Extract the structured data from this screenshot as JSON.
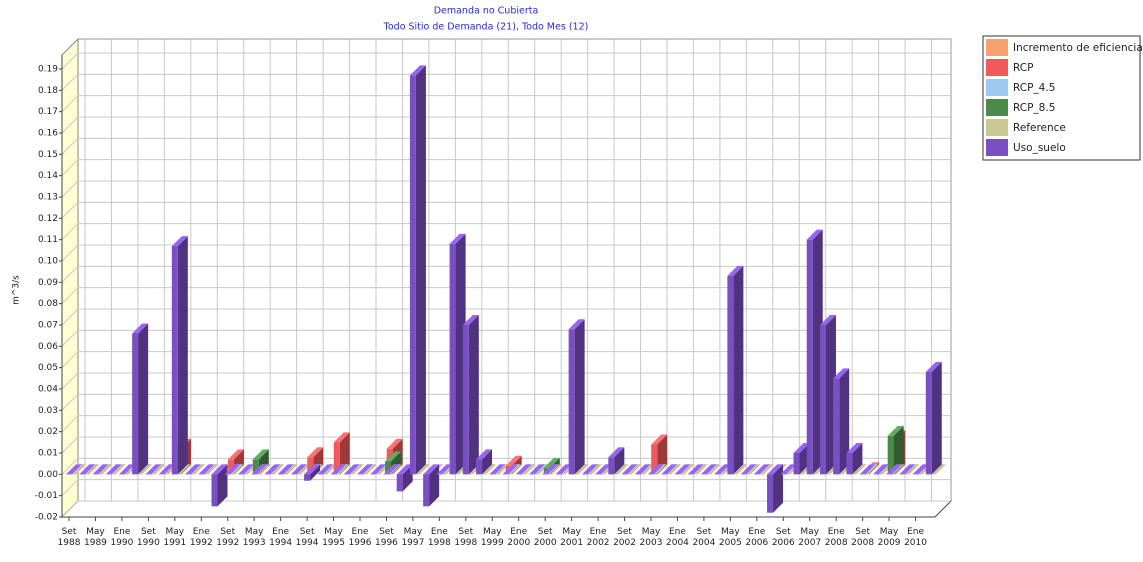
{
  "chart_data": {
    "type": "bar3d",
    "title": "Demanda no Cubierta",
    "subtitle": "Todo Sitio de Demanda (21), Todo Mes (12)",
    "y_label": "m^3/s",
    "grid": true,
    "legend": "right",
    "ylim": [
      -0.02,
      0.19
    ],
    "yticks": [
      -0.02,
      -0.01,
      {
        "value": 0,
        "label": "0.00"
      },
      0.01,
      0.02,
      0.03,
      0.04,
      0.05,
      0.06,
      0.07,
      0.08,
      0.09,
      {
        "value": 0.1,
        "label": "0.10"
      },
      0.11,
      0.12,
      0.13,
      0.14,
      0.15,
      0.16,
      0.17,
      0.18,
      0.19
    ],
    "categories": [
      "Set 1988",
      null,
      "May 1989",
      null,
      "Ene 1990",
      null,
      "Set 1990",
      null,
      "May 1991",
      null,
      "Ene 1992",
      null,
      "Set 1992",
      null,
      "May 1993",
      null,
      "Ene 1994",
      null,
      "Set 1994",
      null,
      "May 1995",
      null,
      "Ene 1996",
      null,
      "Set 1996",
      null,
      "May 1997",
      null,
      "Ene 1998",
      null,
      "Set 1998",
      null,
      "May 1999",
      null,
      "Ene 2000",
      null,
      "Set 2000",
      null,
      "May 2001",
      null,
      "Ene 2002",
      null,
      "Set 2002",
      null,
      "May 2003",
      null,
      "Ene 2004",
      null,
      "Set 2004",
      null,
      "May 2005",
      null,
      "Ene 2006",
      null,
      "Set 2006",
      null,
      "May 2007",
      null,
      "Ene 2008",
      null,
      "Set 2008",
      null,
      "May 2009",
      null,
      "Ene 2010",
      null
    ],
    "series": [
      {
        "name": "Incremento de eficiencia",
        "color": "#f7a26e",
        "values": [
          0,
          0,
          0,
          0,
          0,
          0,
          0,
          0,
          0,
          0,
          0,
          0,
          0,
          0,
          0,
          0,
          0,
          0,
          0,
          0,
          0,
          0,
          0,
          0,
          0,
          0,
          0,
          0,
          0,
          0,
          0,
          0,
          0,
          0,
          0,
          0,
          0,
          0,
          0,
          0,
          0,
          0,
          0,
          0,
          0,
          0,
          0,
          0,
          0,
          0,
          0,
          0,
          0,
          0,
          0,
          0,
          0,
          0,
          0,
          0,
          0,
          0,
          0,
          0,
          0,
          0
        ]
      },
      {
        "name": "RCP",
        "color": "#f05a5a",
        "values": [
          0,
          0,
          0,
          0,
          0,
          0,
          0,
          0,
          0.012,
          0,
          0,
          0,
          0.007,
          0,
          0,
          0,
          0,
          0,
          0.008,
          0,
          0.015,
          0,
          0,
          0,
          0.012,
          0,
          0,
          0,
          0,
          0,
          0,
          0,
          0,
          0.004,
          0,
          0,
          0,
          0,
          0,
          0,
          0,
          0,
          0,
          0,
          0.014,
          0,
          0,
          0,
          0,
          0,
          0,
          0,
          0,
          0,
          0,
          0,
          0,
          0,
          0,
          0,
          0.001,
          0,
          0.016,
          0,
          0,
          0
        ]
      },
      {
        "name": "RCP_4.5",
        "color": "#9ccaf2",
        "values": [
          0,
          0,
          0,
          0,
          0,
          0,
          0,
          0,
          0,
          0,
          0,
          0,
          0,
          0,
          0,
          0,
          0,
          0,
          0,
          0,
          0,
          0,
          0,
          0,
          0,
          0,
          0,
          0,
          0,
          0,
          0,
          0,
          0,
          0,
          0,
          0,
          0,
          0,
          0,
          0,
          0,
          0,
          0,
          0,
          0,
          0,
          0,
          0,
          0,
          0,
          0,
          0,
          0,
          0,
          0,
          0,
          0,
          0,
          0,
          0,
          0,
          0,
          0,
          0,
          0,
          0
        ]
      },
      {
        "name": "RCP_8.5",
        "color": "#4c8a4c",
        "values": [
          0,
          0,
          0,
          0,
          0,
          0,
          0,
          0,
          0,
          0,
          0,
          0,
          0,
          0,
          0.007,
          0,
          0,
          0,
          0,
          0,
          0,
          0,
          0,
          0,
          0.006,
          0,
          0,
          0,
          0,
          0,
          0,
          0,
          0,
          0,
          0,
          0,
          0.003,
          0,
          0,
          0,
          0,
          0,
          0,
          0,
          0,
          0,
          0,
          0,
          0,
          0,
          0,
          0,
          0,
          0,
          0,
          0,
          0,
          0,
          0,
          0,
          0,
          0,
          0.018,
          0,
          0,
          0
        ]
      },
      {
        "name": "Reference",
        "color": "#c8c894",
        "values": [
          0,
          0,
          0,
          0,
          0,
          0,
          0,
          0,
          0,
          0,
          0,
          0,
          0,
          0,
          0,
          0,
          0,
          0,
          0,
          0,
          0,
          0,
          0,
          0,
          0,
          0,
          0,
          0,
          0,
          0,
          0,
          0,
          0,
          0,
          0,
          0,
          0,
          0,
          0,
          0,
          0,
          0,
          0,
          0,
          0,
          0,
          0,
          0,
          0,
          0,
          0,
          0,
          0,
          0,
          0,
          0,
          0,
          0,
          0,
          0,
          0,
          0,
          0,
          0,
          0,
          0
        ]
      },
      {
        "name": "Uso_suelo",
        "color": "#7a4fc4",
        "values": [
          0,
          0,
          0,
          0,
          0,
          0.066,
          0,
          0,
          0.107,
          0,
          0,
          -0.015,
          0,
          0,
          0,
          0,
          0,
          0,
          -0.003,
          0,
          0,
          0,
          0,
          0,
          0,
          -0.008,
          0.187,
          -0.015,
          0,
          0.108,
          0.07,
          0.007,
          0,
          0,
          0,
          0,
          0,
          0,
          0.068,
          0,
          0,
          0.008,
          0,
          0,
          0,
          0,
          0,
          0,
          0,
          0,
          0.093,
          0,
          0,
          -0.018,
          0,
          0.01,
          0.11,
          0.07,
          0.045,
          0.01,
          0,
          0,
          0,
          0,
          0,
          0.048
        ]
      }
    ]
  }
}
